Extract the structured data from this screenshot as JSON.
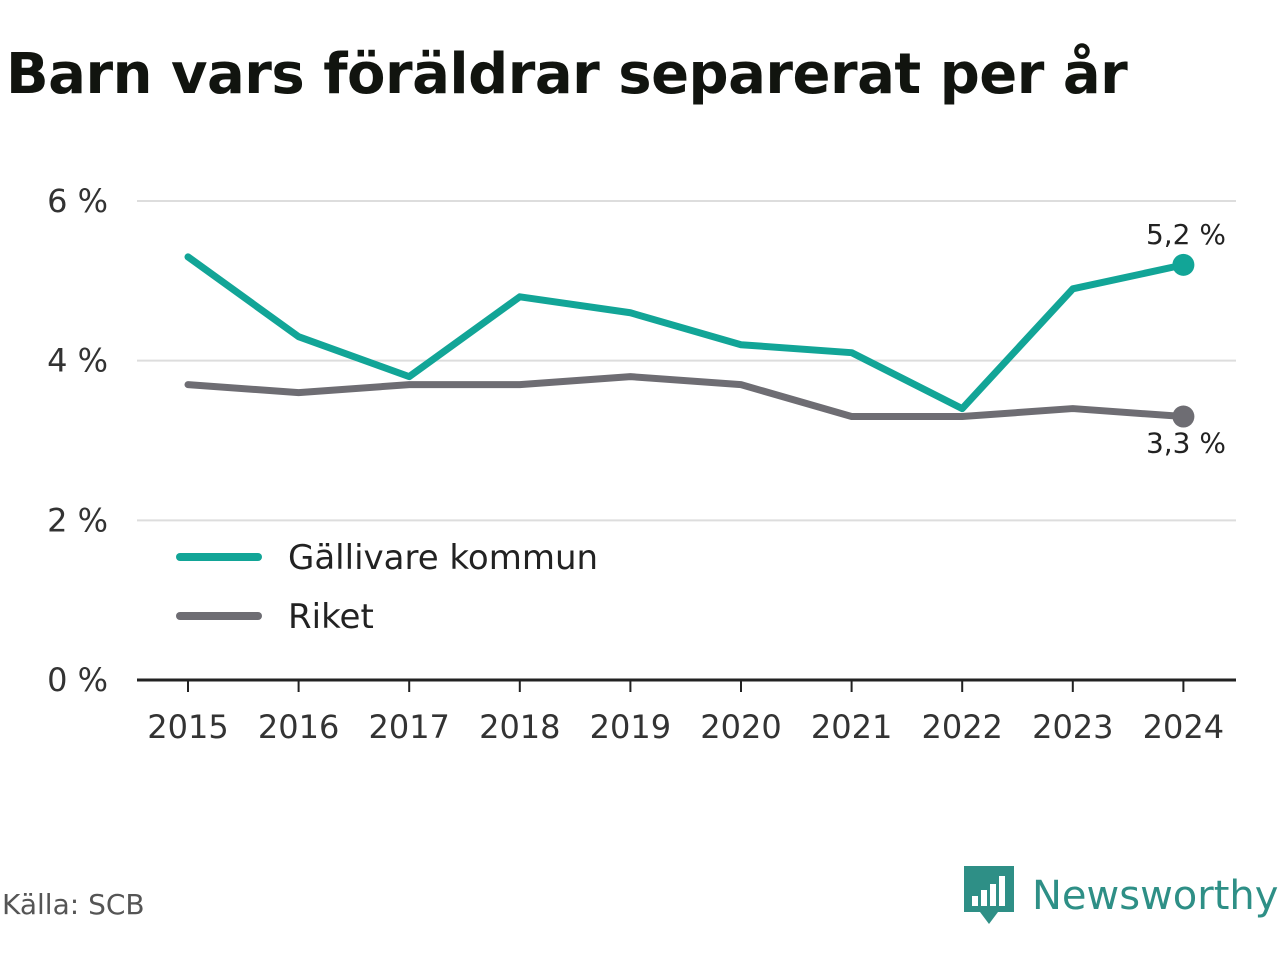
{
  "title": "Barn vars föräldrar separerat per år",
  "source": "Källa: SCB",
  "brand": {
    "name": "Newsworthy",
    "icon": "newsworthy-logo-icon",
    "color": "#2e8f86"
  },
  "colors": {
    "primary": "#12a597",
    "secondary": "#6e6d73",
    "grid": "#dddddd",
    "axis": "#222222"
  },
  "chart_data": {
    "type": "line",
    "title": "Barn vars föräldrar separerat per år",
    "x": [
      "2015",
      "2016",
      "2017",
      "2018",
      "2019",
      "2020",
      "2021",
      "2022",
      "2023",
      "2024"
    ],
    "ylim": [
      0,
      6
    ],
    "yticks": [
      0,
      2,
      4,
      6
    ],
    "ytick_labels": [
      "0 %",
      "2 %",
      "4 %",
      "6 %"
    ],
    "grid": true,
    "legend": "bottom-left",
    "series": [
      {
        "name": "Gällivare kommun",
        "color": "#12a597",
        "values": [
          5.3,
          4.3,
          3.8,
          4.8,
          4.6,
          4.2,
          4.1,
          3.4,
          4.9,
          5.2
        ],
        "end_label": "5,2 %"
      },
      {
        "name": "Riket",
        "color": "#6e6d73",
        "values": [
          3.7,
          3.6,
          3.7,
          3.7,
          3.8,
          3.7,
          3.3,
          3.3,
          3.4,
          3.3
        ],
        "end_label": "3,3 %"
      }
    ]
  }
}
